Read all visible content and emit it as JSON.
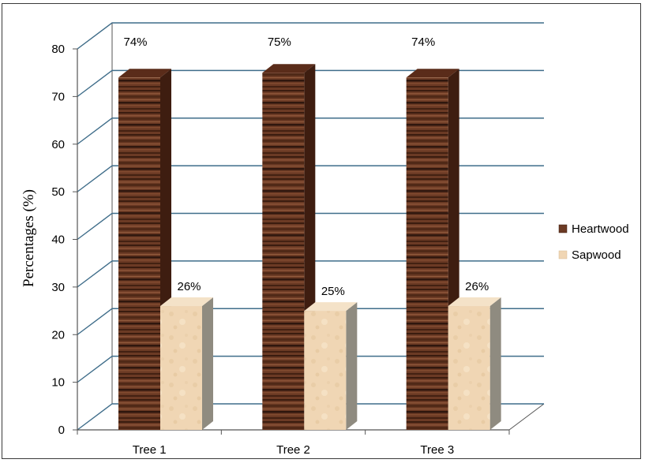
{
  "chart_data": {
    "type": "bar",
    "categories": [
      "Tree 1",
      "Tree 2",
      "Tree 3"
    ],
    "series": [
      {
        "name": "Heartwood",
        "values": [
          74,
          75,
          74
        ],
        "labels": [
          "74%",
          "75%",
          "74%"
        ],
        "color": "#6b3a24"
      },
      {
        "name": "Sapwood",
        "values": [
          26,
          25,
          26
        ],
        "labels": [
          "26%",
          "25%",
          "26%"
        ],
        "color": "#f0d6b4"
      }
    ],
    "title": "",
    "xlabel": "",
    "ylabel": "Percentages (%)",
    "ylim": [
      0,
      80
    ],
    "yticks": [
      0,
      10,
      20,
      30,
      40,
      50,
      60,
      70,
      80
    ],
    "grid": true,
    "legend": "right",
    "colors": {
      "heartwood_front": "#6b3a24",
      "heartwood_top": "#5a2c1a",
      "heartwood_side": "#3e1d10",
      "sapwood_front": "#f0d6b4",
      "sapwood_top": "#f4e2c8",
      "sapwood_side": "#8f8b80",
      "grid": "#3f6d8a",
      "axis": "#555555"
    }
  }
}
